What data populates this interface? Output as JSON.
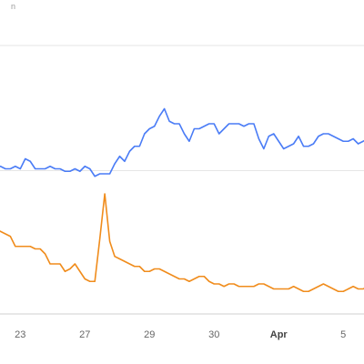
{
  "corner_text": "n",
  "chart_data": {
    "type": "line",
    "xlim": [
      0,
      76
    ],
    "ylim": [
      0,
      100
    ],
    "grid": true,
    "legend": "none",
    "x_ticks": [
      {
        "label": "23",
        "x": 5,
        "bold": false
      },
      {
        "label": "27",
        "x": 18,
        "bold": false
      },
      {
        "label": "29",
        "x": 31,
        "bold": false
      },
      {
        "label": "30",
        "x": 44,
        "bold": false
      },
      {
        "label": "Apr",
        "x": 57,
        "bold": true
      },
      {
        "label": "5",
        "x": 70,
        "bold": false
      }
    ],
    "series": [
      {
        "color": "#4a7cf6",
        "values": [
          59,
          59,
          58,
          58,
          59,
          58,
          62,
          61,
          58,
          58,
          58,
          59,
          58,
          58,
          57,
          57,
          58,
          57,
          59,
          58,
          55,
          56,
          56,
          56,
          60,
          63,
          61,
          65,
          67,
          67,
          72,
          74,
          75,
          79,
          82,
          77,
          76,
          76,
          72,
          69,
          74,
          74,
          75,
          76,
          76,
          72,
          74,
          76,
          76,
          76,
          75,
          76,
          76,
          70,
          66,
          71,
          72,
          69,
          66,
          67,
          68,
          71,
          67,
          67,
          68,
          71,
          72,
          72,
          71,
          70,
          69,
          69,
          70,
          68,
          69,
          70,
          69
        ]
      },
      {
        "color": "#f08c1c",
        "values": [
          34,
          33,
          32,
          31,
          27,
          27,
          27,
          27,
          26,
          26,
          24,
          20,
          20,
          20,
          17,
          18,
          20,
          17,
          14,
          13,
          13,
          30,
          48,
          29,
          23,
          22,
          21,
          20,
          19,
          19,
          17,
          17,
          18,
          18,
          17,
          16,
          15,
          14,
          14,
          13,
          14,
          15,
          15,
          13,
          12,
          12,
          11,
          12,
          12,
          11,
          11,
          11,
          11,
          12,
          12,
          11,
          10,
          10,
          10,
          10,
          11,
          10,
          9,
          9,
          10,
          11,
          12,
          11,
          10,
          9,
          9,
          10,
          11,
          10,
          10,
          11,
          10
        ]
      }
    ]
  }
}
